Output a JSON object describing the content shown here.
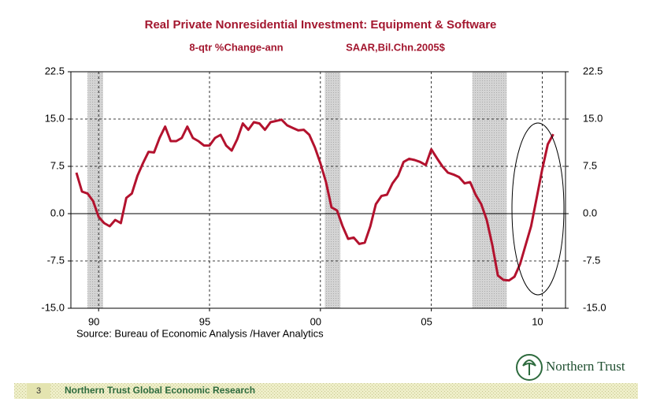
{
  "chart_data": {
    "type": "line",
    "title": "Real Private Nonresidential Investment: Equipment & Software",
    "subtitle": [
      "8-qtr %Change-ann",
      "SAAR,Bil.Chn.2005$"
    ],
    "source": "Source:  Bureau of Economic Analysis /Haver Analytics",
    "x": [
      1989.0,
      1989.25,
      1989.5,
      1989.75,
      1990.0,
      1990.25,
      1990.5,
      1990.75,
      1991.0,
      1991.25,
      1991.5,
      1991.75,
      1992.0,
      1992.25,
      1992.5,
      1992.75,
      1993.0,
      1993.25,
      1993.5,
      1993.75,
      1994.0,
      1994.25,
      1994.5,
      1994.75,
      1995.0,
      1995.25,
      1995.5,
      1995.75,
      1996.0,
      1996.25,
      1996.5,
      1996.75,
      1997.0,
      1997.25,
      1997.5,
      1997.75,
      1998.0,
      1998.25,
      1998.5,
      1998.75,
      1999.0,
      1999.25,
      1999.5,
      1999.75,
      2000.0,
      2000.25,
      2000.5,
      2000.75,
      2001.0,
      2001.25,
      2001.5,
      2001.75,
      2002.0,
      2002.25,
      2002.5,
      2002.75,
      2003.0,
      2003.25,
      2003.5,
      2003.75,
      2004.0,
      2004.25,
      2004.5,
      2004.75,
      2005.0,
      2005.25,
      2005.5,
      2005.75,
      2006.0,
      2006.25,
      2006.5,
      2006.75,
      2007.0,
      2007.25,
      2007.5,
      2007.75,
      2008.0,
      2008.25,
      2008.5,
      2008.75,
      2009.0,
      2009.25,
      2009.5,
      2009.75,
      2010.0,
      2010.25,
      2010.5
    ],
    "series": [
      {
        "color": "#b3122e",
        "values": [
          6.5,
          3.5,
          3.2,
          2.0,
          -0.5,
          -1.5,
          -2.0,
          -1.0,
          -1.5,
          2.5,
          3.2,
          6.0,
          8.0,
          9.8,
          9.7,
          12.0,
          13.8,
          11.5,
          11.5,
          12.0,
          13.8,
          12.0,
          11.5,
          10.8,
          10.8,
          12.0,
          12.5,
          10.8,
          10.0,
          11.8,
          14.3,
          13.3,
          14.5,
          14.3,
          13.3,
          14.5,
          14.7,
          14.9,
          14.0,
          13.6,
          13.2,
          13.3,
          12.5,
          10.5,
          8.0,
          5.0,
          1.0,
          0.5,
          -2.0,
          -4.0,
          -3.8,
          -4.8,
          -4.6,
          -2.0,
          1.5,
          2.8,
          3.0,
          4.8,
          6.0,
          8.2,
          8.7,
          8.5,
          8.2,
          7.7,
          10.2,
          8.8,
          7.5,
          6.5,
          6.2,
          5.8,
          4.8,
          5.0,
          3.0,
          1.5,
          -1.0,
          -5.0,
          -9.8,
          -10.5,
          -10.6,
          -10.0,
          -8.0,
          -5.0,
          -2.0,
          2.5,
          7.0,
          11.0,
          12.6
        ]
      }
    ],
    "shaded_periods": [
      [
        1989.5,
        1990.2
      ],
      [
        2000.2,
        2000.9
      ],
      [
        2006.85,
        2008.4
      ]
    ],
    "xlim": [
      1988.75,
      2011.05
    ],
    "xticks": [
      {
        "value": 1990,
        "label": "90"
      },
      {
        "value": 1995,
        "label": "95"
      },
      {
        "value": 2000,
        "label": "00"
      },
      {
        "value": 2005,
        "label": "05"
      },
      {
        "value": 2010,
        "label": "10"
      }
    ],
    "ylim": [
      -15,
      22.5
    ],
    "yticks": [
      {
        "value": -15,
        "label": "-15.0"
      },
      -7.5,
      {
        "value": 0,
        "label": "0.0"
      },
      7.5,
      {
        "value": 15,
        "label": "15.0"
      },
      22.5
    ],
    "y2lim": [
      -15,
      22.5
    ],
    "y2ticks": [
      {
        "value": -15,
        "label": "-15.0"
      },
      -7.5,
      {
        "value": 0,
        "label": "0.0"
      },
      7.5,
      {
        "value": 15,
        "label": "15.0"
      },
      22.5
    ],
    "grid": true,
    "zero_line": true
  },
  "footer": {
    "page": "3",
    "text": "Northern Trust Global Economic Research",
    "logo": "Northern Trust"
  }
}
